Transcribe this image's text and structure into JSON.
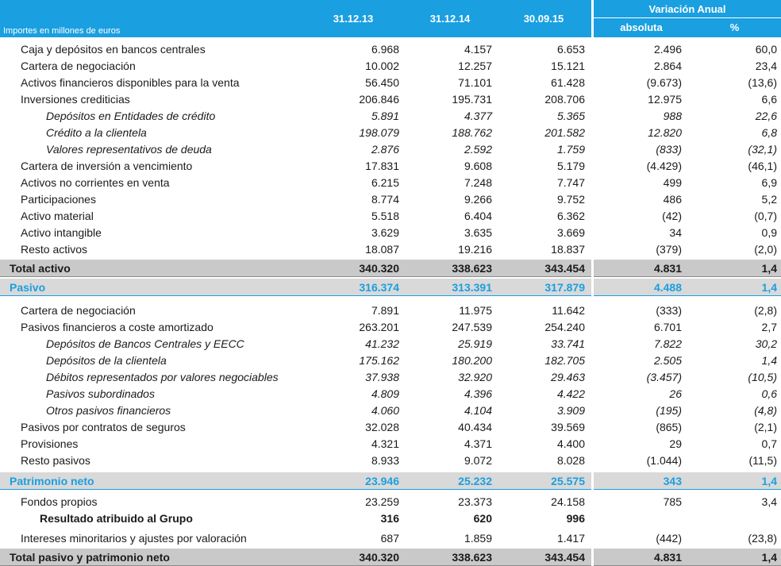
{
  "header": {
    "units": "Importes en millones de euros",
    "col1": "31.12.13",
    "col2": "31.12.14",
    "col3": "30.09.15",
    "variation": "Variación Anual",
    "abs": "absoluta",
    "pct": "%"
  },
  "rows": [
    {
      "label": "Caja y depósitos en bancos centrales",
      "v": [
        "6.968",
        "4.157",
        "6.653",
        "2.496",
        "60,0"
      ]
    },
    {
      "label": "Cartera de negociación",
      "v": [
        "10.002",
        "12.257",
        "15.121",
        "2.864",
        "23,4"
      ]
    },
    {
      "label": "Activos financieros disponibles para la venta",
      "v": [
        "56.450",
        "71.101",
        "61.428",
        "(9.673)",
        "(13,6)"
      ]
    },
    {
      "label": "Inversiones crediticias",
      "v": [
        "206.846",
        "195.731",
        "208.706",
        "12.975",
        "6,6"
      ]
    },
    {
      "label": "Depósitos en Entidades de crédito",
      "v": [
        "5.891",
        "4.377",
        "5.365",
        "988",
        "22,6"
      ]
    },
    {
      "label": "Crédito a la clientela",
      "v": [
        "198.079",
        "188.762",
        "201.582",
        "12.820",
        "6,8"
      ]
    },
    {
      "label": "Valores representativos de deuda",
      "v": [
        "2.876",
        "2.592",
        "1.759",
        "(833)",
        "(32,1)"
      ]
    },
    {
      "label": "Cartera de inversión a vencimiento",
      "v": [
        "17.831",
        "9.608",
        "5.179",
        "(4.429)",
        "(46,1)"
      ]
    },
    {
      "label": "Activos no corrientes en venta",
      "v": [
        "6.215",
        "7.248",
        "7.747",
        "499",
        "6,9"
      ]
    },
    {
      "label": "Participaciones",
      "v": [
        "8.774",
        "9.266",
        "9.752",
        "486",
        "5,2"
      ]
    },
    {
      "label": "Activo material",
      "v": [
        "5.518",
        "6.404",
        "6.362",
        "(42)",
        "(0,7)"
      ]
    },
    {
      "label": "Activo intangible",
      "v": [
        "3.629",
        "3.635",
        "3.669",
        "34",
        "0,9"
      ]
    },
    {
      "label": "Resto activos",
      "v": [
        "18.087",
        "19.216",
        "18.837",
        "(379)",
        "(2,0)"
      ]
    },
    {
      "label": "Total activo",
      "v": [
        "340.320",
        "338.623",
        "343.454",
        "4.831",
        "1,4"
      ]
    },
    {
      "label": "Pasivo",
      "v": [
        "316.374",
        "313.391",
        "317.879",
        "4.488",
        "1,4"
      ]
    },
    {
      "label": "Cartera de negociación",
      "v": [
        "7.891",
        "11.975",
        "11.642",
        "(333)",
        "(2,8)"
      ]
    },
    {
      "label": "Pasivos financieros a coste amortizado",
      "v": [
        "263.201",
        "247.539",
        "254.240",
        "6.701",
        "2,7"
      ]
    },
    {
      "label": "Depósitos de Bancos Centrales y EECC",
      "v": [
        "41.232",
        "25.919",
        "33.741",
        "7.822",
        "30,2"
      ]
    },
    {
      "label": "Depósitos de la clientela",
      "v": [
        "175.162",
        "180.200",
        "182.705",
        "2.505",
        "1,4"
      ]
    },
    {
      "label": "Débitos representados por valores negociables",
      "v": [
        "37.938",
        "32.920",
        "29.463",
        "(3.457)",
        "(10,5)"
      ]
    },
    {
      "label": "Pasivos subordinados",
      "v": [
        "4.809",
        "4.396",
        "4.422",
        "26",
        "0,6"
      ]
    },
    {
      "label": "Otros pasivos financieros",
      "v": [
        "4.060",
        "4.104",
        "3.909",
        "(195)",
        "(4,8)"
      ]
    },
    {
      "label": "Pasivos por contratos de seguros",
      "v": [
        "32.028",
        "40.434",
        "39.569",
        "(865)",
        "(2,1)"
      ]
    },
    {
      "label": "Provisiones",
      "v": [
        "4.321",
        "4.371",
        "4.400",
        "29",
        "0,7"
      ]
    },
    {
      "label": "Resto pasivos",
      "v": [
        "8.933",
        "9.072",
        "8.028",
        "(1.044)",
        "(11,5)"
      ]
    },
    {
      "label": "Patrimonio neto",
      "v": [
        "23.946",
        "25.232",
        "25.575",
        "343",
        "1,4"
      ]
    },
    {
      "label": "Fondos propios",
      "v": [
        "23.259",
        "23.373",
        "24.158",
        "785",
        "3,4"
      ]
    },
    {
      "label": "Resultado atribuido al Grupo",
      "v": [
        "316",
        "620",
        "996",
        "",
        ""
      ]
    },
    {
      "label": "Intereses minoritarios y ajustes por valoración",
      "v": [
        "687",
        "1.859",
        "1.417",
        "(442)",
        "(23,8)"
      ]
    },
    {
      "label": "Total pasivo y patrimonio neto",
      "v": [
        "340.320",
        "338.623",
        "343.454",
        "4.831",
        "1,4"
      ]
    }
  ],
  "colors": {
    "accent": "#1a9fe0",
    "band": "#d6d6d6"
  }
}
